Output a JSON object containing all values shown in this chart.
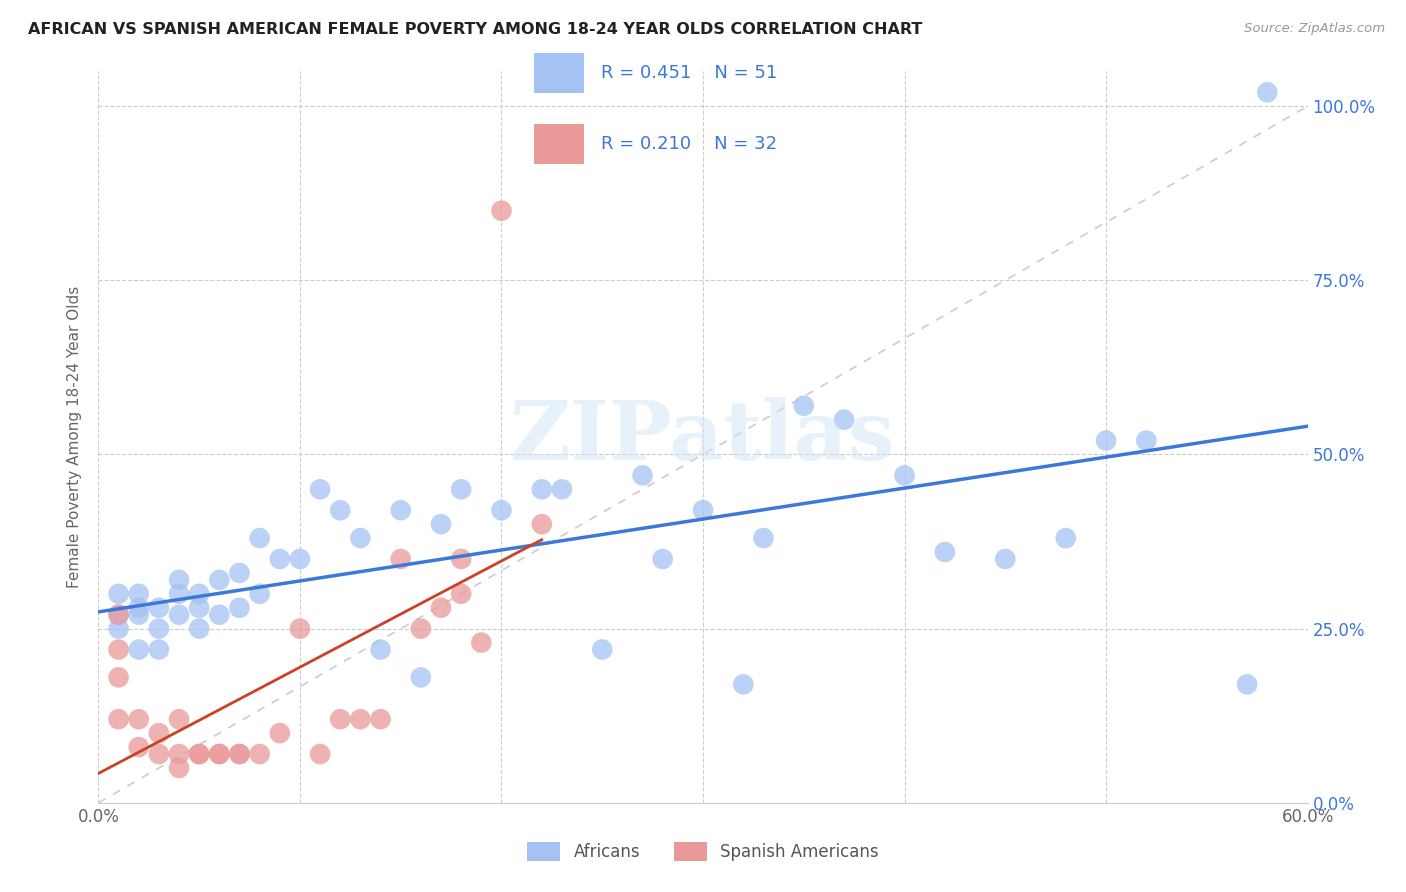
{
  "title": "AFRICAN VS SPANISH AMERICAN FEMALE POVERTY AMONG 18-24 YEAR OLDS CORRELATION CHART",
  "source": "Source: ZipAtlas.com",
  "ylabel": "Female Poverty Among 18-24 Year Olds",
  "xmin": 0.0,
  "xmax": 0.6,
  "ymin": 0.0,
  "ymax": 1.05,
  "x_tick_positions": [
    0.0,
    0.1,
    0.2,
    0.3,
    0.4,
    0.5,
    0.6
  ],
  "x_tick_labels": [
    "0.0%",
    "",
    "",
    "",
    "",
    "",
    "60.0%"
  ],
  "y_tick_positions": [
    0.0,
    0.25,
    0.5,
    0.75,
    1.0
  ],
  "y_tick_labels_right": [
    "0.0%",
    "25.0%",
    "50.0%",
    "75.0%",
    "100.0%"
  ],
  "legend_african": "R = 0.451    N = 51",
  "legend_spanish": "R = 0.210    N = 32",
  "african_color": "#a4c2f4",
  "spanish_color": "#ea9999",
  "african_line_color": "#3c78d8",
  "spanish_line_color": "#cc4125",
  "diagonal_color": "#cccccc",
  "watermark_text": "ZIPatlas",
  "background_color": "#ffffff",
  "african_scatter_x": [
    0.01,
    0.01,
    0.01,
    0.02,
    0.02,
    0.02,
    0.02,
    0.03,
    0.03,
    0.03,
    0.04,
    0.04,
    0.04,
    0.05,
    0.05,
    0.05,
    0.06,
    0.06,
    0.07,
    0.07,
    0.08,
    0.08,
    0.09,
    0.1,
    0.11,
    0.12,
    0.13,
    0.14,
    0.15,
    0.16,
    0.17,
    0.18,
    0.2,
    0.22,
    0.23,
    0.25,
    0.27,
    0.28,
    0.3,
    0.32,
    0.33,
    0.35,
    0.37,
    0.4,
    0.42,
    0.45,
    0.48,
    0.5,
    0.52,
    0.57,
    0.58
  ],
  "african_scatter_y": [
    0.27,
    0.3,
    0.25,
    0.28,
    0.3,
    0.27,
    0.22,
    0.28,
    0.25,
    0.22,
    0.32,
    0.27,
    0.3,
    0.3,
    0.28,
    0.25,
    0.32,
    0.27,
    0.33,
    0.28,
    0.38,
    0.3,
    0.35,
    0.35,
    0.45,
    0.42,
    0.38,
    0.22,
    0.42,
    0.18,
    0.4,
    0.45,
    0.42,
    0.45,
    0.45,
    0.22,
    0.47,
    0.35,
    0.42,
    0.17,
    0.38,
    0.57,
    0.55,
    0.47,
    0.36,
    0.35,
    0.38,
    0.52,
    0.52,
    0.17,
    1.02
  ],
  "spanish_scatter_x": [
    0.01,
    0.01,
    0.01,
    0.01,
    0.02,
    0.02,
    0.03,
    0.03,
    0.04,
    0.04,
    0.04,
    0.05,
    0.05,
    0.06,
    0.06,
    0.07,
    0.07,
    0.08,
    0.09,
    0.1,
    0.11,
    0.12,
    0.13,
    0.14,
    0.15,
    0.16,
    0.17,
    0.18,
    0.18,
    0.19,
    0.2,
    0.22
  ],
  "spanish_scatter_y": [
    0.27,
    0.22,
    0.18,
    0.12,
    0.12,
    0.08,
    0.1,
    0.07,
    0.07,
    0.05,
    0.12,
    0.07,
    0.07,
    0.07,
    0.07,
    0.07,
    0.07,
    0.07,
    0.1,
    0.25,
    0.07,
    0.12,
    0.12,
    0.12,
    0.35,
    0.25,
    0.28,
    0.3,
    0.35,
    0.23,
    0.85,
    0.4
  ]
}
